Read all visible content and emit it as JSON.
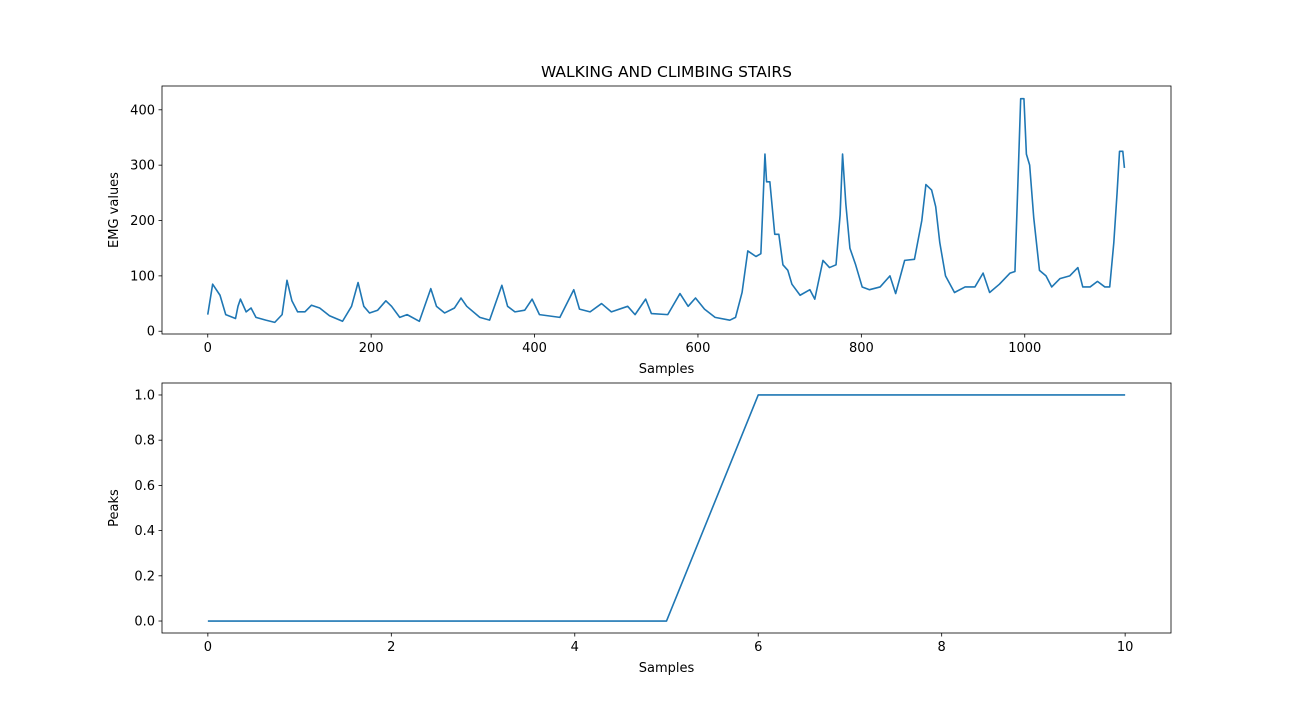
{
  "chart_data": [
    {
      "type": "line",
      "title": "WALKING AND CLIMBING STAIRS",
      "xlabel": "Samples",
      "ylabel": "EMG values",
      "color": "#1f77b4",
      "x": [
        0,
        6,
        15,
        22,
        34,
        37,
        40,
        47,
        53,
        59,
        71,
        82,
        91,
        97,
        103,
        110,
        119,
        127,
        137,
        149,
        165,
        176,
        184,
        191,
        198,
        208,
        218,
        225,
        235,
        244,
        259,
        273,
        280,
        290,
        302,
        310,
        317,
        333,
        345,
        360,
        367,
        376,
        388,
        397,
        406,
        431,
        448,
        455,
        468,
        482,
        494,
        514,
        523,
        536,
        543,
        563,
        578,
        588,
        597,
        608,
        621,
        639,
        646,
        654,
        661,
        671,
        677,
        679,
        682,
        684,
        688,
        694,
        699,
        704,
        710,
        715,
        725,
        737,
        743,
        753,
        761,
        769,
        774,
        777,
        781,
        786,
        793,
        801,
        810,
        823,
        835,
        842,
        853,
        865,
        874,
        879,
        886,
        891,
        896,
        903,
        914,
        927,
        939,
        949,
        957,
        969,
        982,
        988,
        991,
        995,
        999,
        1002,
        1006,
        1011,
        1018,
        1026,
        1033,
        1043,
        1055,
        1065,
        1071,
        1080,
        1089,
        1098,
        1104,
        1109,
        1113,
        1116,
        1120,
        1122
      ],
      "values": [
        30,
        85,
        65,
        30,
        23,
        45,
        58,
        35,
        42,
        25,
        20,
        16,
        30,
        92,
        55,
        35,
        35,
        47,
        42,
        28,
        18,
        45,
        88,
        45,
        33,
        38,
        55,
        45,
        25,
        30,
        18,
        77,
        45,
        33,
        42,
        60,
        45,
        25,
        20,
        83,
        45,
        35,
        38,
        58,
        30,
        25,
        75,
        40,
        35,
        50,
        35,
        45,
        30,
        58,
        32,
        30,
        68,
        45,
        60,
        40,
        25,
        20,
        25,
        70,
        145,
        135,
        140,
        210,
        320,
        270,
        270,
        175,
        175,
        120,
        110,
        85,
        65,
        75,
        58,
        128,
        115,
        120,
        210,
        320,
        230,
        150,
        120,
        80,
        75,
        80,
        100,
        68,
        128,
        130,
        200,
        265,
        255,
        225,
        160,
        100,
        70,
        80,
        80,
        105,
        70,
        85,
        105,
        108,
        240,
        420,
        420,
        320,
        300,
        205,
        110,
        100,
        80,
        95,
        100,
        115,
        80,
        80,
        90,
        80,
        80,
        160,
        250,
        325,
        325,
        295
      ],
      "xlim": [
        -56,
        1179
      ],
      "ylim": [
        -5,
        443
      ],
      "xticks": [
        0,
        200,
        400,
        600,
        800,
        1000
      ],
      "yticks": [
        0,
        100,
        200,
        300,
        400
      ]
    },
    {
      "type": "line",
      "xlabel": "Samples",
      "ylabel": "Peaks",
      "color": "#1f77b4",
      "x": [
        0,
        1,
        2,
        3,
        4,
        5,
        6,
        7,
        8,
        9,
        10
      ],
      "values": [
        0,
        0,
        0,
        0,
        0,
        0,
        1,
        1,
        1,
        1,
        1
      ],
      "xlim": [
        -0.5,
        10.5
      ],
      "ylim": [
        -0.053,
        1.053
      ],
      "xticks": [
        0,
        2,
        4,
        6,
        8,
        10
      ],
      "yticks": [
        {
          "value": 0,
          "label": "0.0"
        },
        {
          "value": 0.2,
          "label": "0.2"
        },
        {
          "value": 0.4,
          "label": "0.4"
        },
        {
          "value": 0.6,
          "label": "0.6"
        },
        {
          "value": 0.8,
          "label": "0.8"
        },
        {
          "value": 1,
          "label": "1.0"
        }
      ]
    }
  ]
}
